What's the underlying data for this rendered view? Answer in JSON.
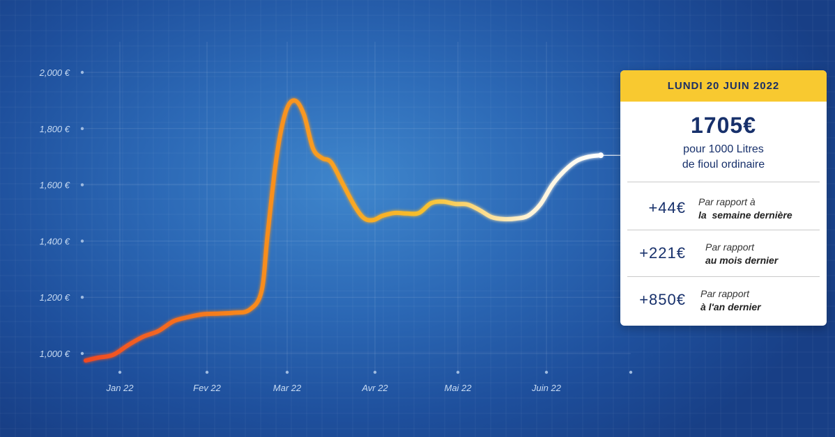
{
  "chart_data": {
    "type": "line",
    "series": [
      {
        "x": [
          "2022-01-01",
          "2022-01-05",
          "2022-01-10",
          "2022-01-15",
          "2022-01-20",
          "2022-01-25",
          "2022-01-30",
          "2022-02-04",
          "2022-02-09",
          "2022-02-14",
          "2022-02-19",
          "2022-02-24",
          "2022-02-28",
          "2022-03-02",
          "2022-03-05",
          "2022-03-08",
          "2022-03-11",
          "2022-03-14",
          "2022-03-17",
          "2022-03-20",
          "2022-03-23",
          "2022-03-27",
          "2022-03-31",
          "2022-04-03",
          "2022-04-06",
          "2022-04-09",
          "2022-04-13",
          "2022-04-17",
          "2022-04-21",
          "2022-04-25",
          "2022-04-29",
          "2022-05-03",
          "2022-05-07",
          "2022-05-11",
          "2022-05-15",
          "2022-05-19",
          "2022-05-23",
          "2022-05-27",
          "2022-05-31",
          "2022-06-04",
          "2022-06-08",
          "2022-06-12",
          "2022-06-16",
          "2022-06-20"
        ],
        "values": [
          975,
          985,
          995,
          1030,
          1060,
          1080,
          1115,
          1130,
          1140,
          1142,
          1145,
          1155,
          1220,
          1420,
          1700,
          1860,
          1900,
          1850,
          1730,
          1695,
          1680,
          1600,
          1520,
          1480,
          1475,
          1490,
          1500,
          1498,
          1500,
          1535,
          1540,
          1532,
          1530,
          1510,
          1485,
          1478,
          1480,
          1490,
          1530,
          1600,
          1650,
          1685,
          1700,
          1705
        ]
      }
    ],
    "x_ticks": [
      {
        "date": "2022-01-01",
        "label": "Jan 22"
      },
      {
        "date": "2022-02-01",
        "label": "Fev 22"
      },
      {
        "date": "2022-03-01",
        "label": "Mar 22"
      },
      {
        "date": "2022-04-01",
        "label": "Avr 22"
      },
      {
        "date": "2022-05-01",
        "label": "Mai 22"
      },
      {
        "date": "2022-06-01",
        "label": "Juin 22"
      }
    ],
    "y_ticks": [
      {
        "value": 1000,
        "label": "1,000 €"
      },
      {
        "value": 1200,
        "label": "1,200 €"
      },
      {
        "value": 1400,
        "label": "1,400 €"
      },
      {
        "value": 1600,
        "label": "1,600 €"
      },
      {
        "value": 1800,
        "label": "1,800 €"
      },
      {
        "value": 2000,
        "label": "2,000 €"
      }
    ],
    "xlim": [
      "2021-12-20",
      "2022-07-01"
    ],
    "ylim": [
      940,
      2000
    ],
    "grid": true,
    "legend": "none"
  },
  "card": {
    "date": "LUNDI 20 JUIN 2022",
    "price": "1705€",
    "desc_line1": "pour 1000 Litres",
    "desc_line2": "de fioul ordinaire",
    "rows": [
      {
        "value": "+44€",
        "caption_line1": "Par rapport à",
        "caption_line2": "la  semaine dernière"
      },
      {
        "value": "+221€",
        "caption_line1": "Par rapport",
        "caption_line2": "au mois dernier"
      },
      {
        "value": "+850€",
        "caption_line1": "Par rapport",
        "caption_line2": "à l'an dernier"
      }
    ]
  },
  "colors": {
    "line_start": "#f04a24",
    "line_mid": "#f9a423",
    "line_end": "#ffffff",
    "card_header": "#f8c930",
    "text_navy": "#17306b"
  }
}
